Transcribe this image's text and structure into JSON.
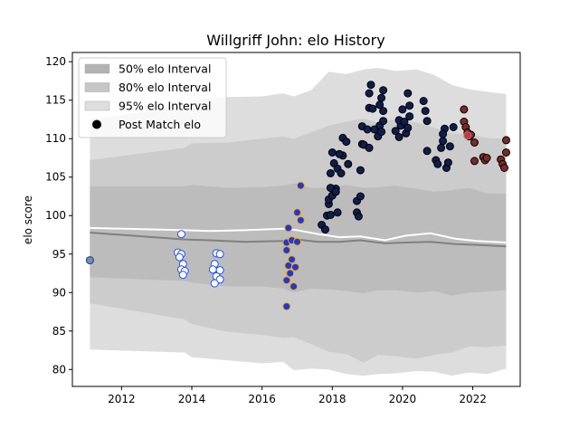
{
  "chart_data": {
    "type": "scatter",
    "title": "Willgriff John: elo History",
    "xlabel": "",
    "ylabel": "elo score",
    "xlim": [
      2010.6,
      2023.35
    ],
    "ylim": [
      77.8,
      121.2
    ],
    "xticks": [
      2012,
      2014,
      2016,
      2018,
      2020,
      2022
    ],
    "yticks": [
      80,
      85,
      90,
      95,
      100,
      105,
      110,
      115,
      120
    ],
    "grid": false,
    "legend_position": "top-left",
    "legend": [
      "50% elo Interval",
      "80% elo Interval",
      "95% elo Interval",
      "Post Match elo"
    ],
    "bands": {
      "x": [
        2011.1,
        2013.8,
        2014.0,
        2015.0,
        2016.0,
        2016.6,
        2016.9,
        2017.4,
        2017.9,
        2018.4,
        2018.9,
        2019.3,
        2019.8,
        2020.4,
        2020.9,
        2021.4,
        2021.9,
        2022.4,
        2022.95
      ],
      "p95": {
        "upper": [
          112.5,
          114.3,
          115.0,
          115.4,
          115.5,
          115.9,
          115.5,
          116.3,
          118.7,
          118.4,
          119.0,
          119.2,
          118.8,
          119.0,
          118.3,
          117.0,
          116.4,
          116.1,
          115.8
        ],
        "lower": [
          82.6,
          82.2,
          81.6,
          81.2,
          80.8,
          81.0,
          79.9,
          80.1,
          80.0,
          79.4,
          79.2,
          79.4,
          79.5,
          79.8,
          79.7,
          79.2,
          79.6,
          79.4,
          80.1
        ]
      },
      "p80": {
        "upper": [
          107.2,
          108.8,
          109.4,
          109.5,
          110.0,
          110.3,
          110.0,
          110.8,
          111.7,
          112.2,
          112.6,
          112.1,
          112.5,
          112.1,
          111.4,
          110.7,
          110.6,
          110.1,
          110.0
        ]
      },
      "p50": {
        "upper": [
          103.8,
          103.8,
          104.0,
          103.6,
          103.7,
          103.9,
          104.2,
          103.6,
          103.6,
          104.0,
          103.6,
          103.7,
          103.9,
          103.5,
          103.1,
          103.3,
          103.6,
          102.9,
          102.8
        ],
        "lower": [
          92.0,
          91.5,
          91.3,
          90.8,
          90.8,
          90.5,
          90.0,
          90.5,
          90.4,
          90.2,
          89.9,
          90.3,
          90.3,
          90.0,
          90.2,
          89.6,
          90.0,
          90.1,
          90.3
        ]
      }
    },
    "lines": [
      {
        "color": "#808080",
        "x": [
          2011.1,
          2013.8,
          2014.5,
          2015.5,
          2016.6,
          2017.0,
          2017.6,
          2018.2,
          2018.8,
          2019.5,
          2020.1,
          2020.8,
          2021.5,
          2022.1,
          2022.95
        ],
        "y": [
          97.8,
          96.9,
          96.8,
          96.6,
          96.7,
          96.9,
          96.6,
          96.6,
          96.8,
          96.4,
          96.5,
          96.6,
          96.3,
          96.2,
          96.0
        ]
      },
      {
        "color": "#ffffff",
        "x": [
          2011.1,
          2013.8,
          2014.5,
          2015.5,
          2016.6,
          2017.0,
          2017.6,
          2018.2,
          2018.8,
          2019.5,
          2020.1,
          2020.8,
          2021.5,
          2022.1,
          2022.95
        ],
        "y": [
          98.4,
          98.1,
          98.0,
          98.1,
          98.3,
          98.1,
          97.6,
          97.2,
          97.3,
          96.8,
          97.4,
          97.7,
          97.0,
          96.7,
          96.5
        ]
      }
    ],
    "point_groups": [
      {
        "fill": "#6c8ebf",
        "stroke": "#2a3a55",
        "points": [
          [
            2011.1,
            94.2
          ]
        ]
      },
      {
        "fill": "#ffffff",
        "stroke": "#1f4fff",
        "points": [
          [
            2013.7,
            97.6
          ],
          [
            2013.6,
            95.2
          ],
          [
            2013.7,
            95.0
          ],
          [
            2013.65,
            94.6
          ],
          [
            2013.75,
            93.7
          ],
          [
            2013.7,
            93.0
          ],
          [
            2013.8,
            92.8
          ],
          [
            2013.75,
            92.3
          ],
          [
            2014.7,
            95.1
          ],
          [
            2014.8,
            95.0
          ],
          [
            2014.65,
            93.7
          ],
          [
            2014.6,
            93.0
          ],
          [
            2014.8,
            92.9
          ],
          [
            2014.7,
            92.1
          ],
          [
            2014.8,
            91.7
          ],
          [
            2014.65,
            91.2
          ]
        ]
      },
      {
        "fill": "#1a3ad8",
        "stroke": "#ffa500",
        "points": [
          [
            2016.7,
            88.2
          ],
          [
            2016.7,
            91.6
          ],
          [
            2016.8,
            92.5
          ],
          [
            2016.9,
            90.8
          ],
          [
            2016.75,
            93.5
          ],
          [
            2016.95,
            93.3
          ],
          [
            2016.85,
            94.3
          ],
          [
            2016.7,
            95.5
          ],
          [
            2016.7,
            96.5
          ],
          [
            2016.85,
            96.8
          ],
          [
            2017.0,
            96.6
          ],
          [
            2016.75,
            98.4
          ],
          [
            2017.1,
            99.4
          ],
          [
            2017.0,
            100.4
          ],
          [
            2017.1,
            103.9
          ]
        ]
      },
      {
        "fill": "#101e4e",
        "stroke": "#000000",
        "points": [
          [
            2017.7,
            98.8
          ],
          [
            2017.8,
            98.2
          ],
          [
            2017.85,
            100.0
          ],
          [
            2017.95,
            100.1
          ],
          [
            2017.9,
            101.5
          ],
          [
            2017.9,
            102.1
          ],
          [
            2018.0,
            102.6
          ],
          [
            2018.1,
            103.5
          ],
          [
            2017.95,
            103.6
          ],
          [
            2018.1,
            103.1
          ],
          [
            2018.15,
            100.4
          ],
          [
            2017.95,
            105.5
          ],
          [
            2018.05,
            106.8
          ],
          [
            2018.15,
            106.1
          ],
          [
            2018.25,
            105.5
          ],
          [
            2018.3,
            107.8
          ],
          [
            2018.45,
            106.7
          ],
          [
            2018.0,
            108.2
          ],
          [
            2018.2,
            108.0
          ],
          [
            2018.3,
            110.1
          ],
          [
            2018.4,
            109.6
          ],
          [
            2018.7,
            100.4
          ],
          [
            2018.75,
            99.9
          ],
          [
            2018.7,
            101.9
          ],
          [
            2018.8,
            102.5
          ],
          [
            2018.8,
            105.9
          ],
          [
            2018.85,
            109.3
          ],
          [
            2018.9,
            109.2
          ],
          [
            2019.05,
            108.8
          ],
          [
            2018.85,
            111.6
          ],
          [
            2019.0,
            111.2
          ],
          [
            2019.05,
            114.0
          ],
          [
            2019.15,
            113.9
          ],
          [
            2019.05,
            115.9
          ],
          [
            2019.1,
            117.0
          ],
          [
            2019.2,
            111.2
          ],
          [
            2019.3,
            110.3
          ],
          [
            2019.35,
            111.7
          ],
          [
            2019.4,
            110.9
          ],
          [
            2019.45,
            112.3
          ],
          [
            2019.35,
            114.4
          ],
          [
            2019.4,
            115.3
          ],
          [
            2019.45,
            116.3
          ],
          [
            2019.45,
            113.6
          ],
          [
            2019.8,
            111.0
          ],
          [
            2019.9,
            110.2
          ],
          [
            2019.95,
            111.7
          ],
          [
            2019.9,
            112.4
          ],
          [
            2020.05,
            112.2
          ],
          [
            2020.0,
            113.8
          ],
          [
            2020.1,
            110.7
          ],
          [
            2020.15,
            111.4
          ],
          [
            2020.2,
            112.9
          ],
          [
            2020.2,
            114.3
          ],
          [
            2020.15,
            115.9
          ],
          [
            2020.6,
            114.9
          ],
          [
            2020.65,
            113.6
          ],
          [
            2020.7,
            112.3
          ],
          [
            2020.7,
            108.4
          ],
          [
            2020.95,
            107.2
          ],
          [
            2021.0,
            106.7
          ],
          [
            2021.1,
            108.8
          ],
          [
            2021.15,
            109.7
          ],
          [
            2021.2,
            111.3
          ],
          [
            2021.15,
            110.6
          ],
          [
            2021.25,
            106.2
          ],
          [
            2021.3,
            106.9
          ],
          [
            2021.35,
            109.0
          ],
          [
            2021.45,
            111.5
          ]
        ]
      },
      {
        "fill": "#7a2a2a",
        "stroke": "#000000",
        "points": [
          [
            2021.75,
            113.8
          ],
          [
            2021.75,
            112.2
          ],
          [
            2021.8,
            111.5
          ],
          [
            2021.85,
            110.8
          ],
          [
            2021.9,
            110.3
          ],
          [
            2021.95,
            110.5
          ],
          [
            2022.05,
            109.5
          ],
          [
            2022.05,
            107.1
          ],
          [
            2022.3,
            107.6
          ],
          [
            2022.35,
            107.2
          ],
          [
            2022.4,
            107.5
          ],
          [
            2022.8,
            107.3
          ],
          [
            2022.85,
            106.7
          ],
          [
            2022.9,
            106.2
          ],
          [
            2022.95,
            108.2
          ],
          [
            2022.95,
            109.8
          ]
        ]
      },
      {
        "fill": "#e8243a",
        "stroke": "#888888",
        "points": [
          [
            2021.85,
            110.4
          ]
        ]
      }
    ]
  }
}
